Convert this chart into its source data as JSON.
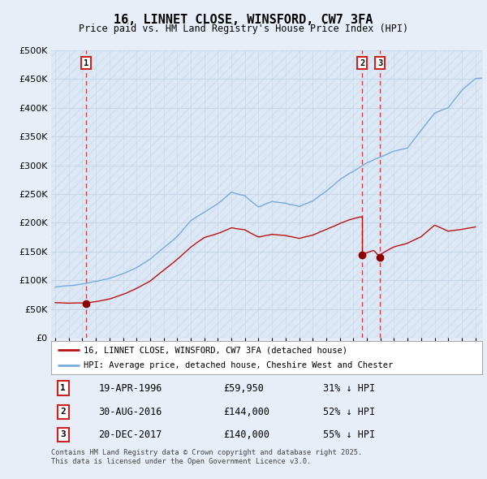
{
  "title": "16, LINNET CLOSE, WINSFORD, CW7 3FA",
  "subtitle": "Price paid vs. HM Land Registry's House Price Index (HPI)",
  "legend_line1": "16, LINNET CLOSE, WINSFORD, CW7 3FA (detached house)",
  "legend_line2": "HPI: Average price, detached house, Cheshire West and Chester",
  "footnote": "Contains HM Land Registry data © Crown copyright and database right 2025.\nThis data is licensed under the Open Government Licence v3.0.",
  "sale_events": [
    {
      "num": 1,
      "date": "19-APR-1996",
      "price": 59950,
      "pct": "31% ↓ HPI",
      "year": 1996.29
    },
    {
      "num": 2,
      "date": "30-AUG-2016",
      "price": 144000,
      "pct": "52% ↓ HPI",
      "year": 2016.66
    },
    {
      "num": 3,
      "date": "20-DEC-2017",
      "price": 140000,
      "pct": "55% ↓ HPI",
      "year": 2017.97
    }
  ],
  "ylim": [
    0,
    500000
  ],
  "yticks": [
    0,
    50000,
    100000,
    150000,
    200000,
    250000,
    300000,
    350000,
    400000,
    450000,
    500000
  ],
  "xlim": [
    1993.7,
    2025.5
  ],
  "bg_color": "#e8eef8",
  "plot_bg": "#dce8f5",
  "grid_color": "#c5d5e8",
  "red_line_color": "#bb1111",
  "blue_line_color": "#7aaadd",
  "red_dot_color": "#880000",
  "dashed_line_color": "#cc3333"
}
